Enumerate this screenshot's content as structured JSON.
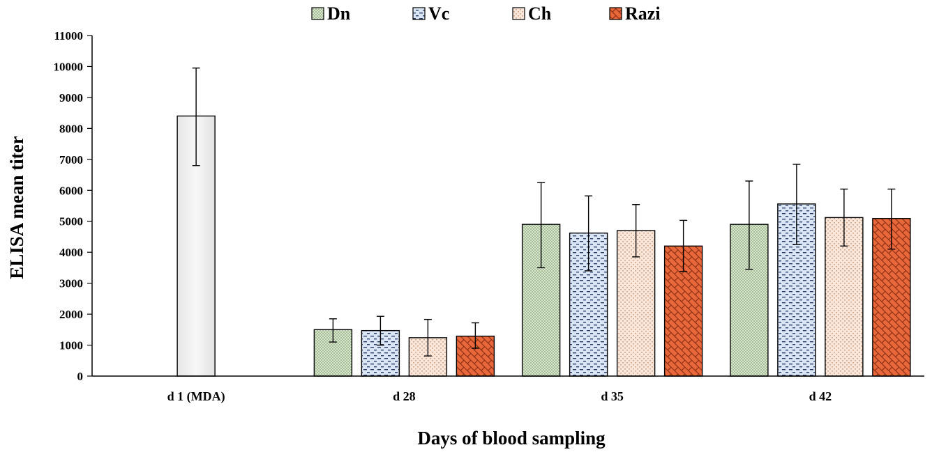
{
  "chart_data": {
    "type": "bar",
    "title": "",
    "xlabel": "Days of blood sampling",
    "ylabel": "ELISA mean titer",
    "ylim": [
      0,
      11000
    ],
    "yticks": [
      0,
      1000,
      2000,
      3000,
      4000,
      5000,
      6000,
      7000,
      8000,
      9000,
      10000,
      11000
    ],
    "grid": false,
    "legend_position": "top",
    "categories": [
      "d 1 (MDA)",
      "d 28",
      "d 35",
      "d 42"
    ],
    "baseline": {
      "category": "d 1 (MDA)",
      "value": 8400,
      "err_low": 6800,
      "err_high": 9950,
      "color": "#efefef"
    },
    "series": [
      {
        "name": "Dn",
        "color": "#d7e6cc",
        "pattern": "dots",
        "values": [
          null,
          1500,
          4900,
          4900
        ],
        "err_low": [
          null,
          1100,
          3500,
          3450
        ],
        "err_high": [
          null,
          1850,
          6250,
          6300
        ]
      },
      {
        "name": "Vc",
        "color": "#dae5f5",
        "pattern": "dashes",
        "values": [
          null,
          1470,
          4620,
          5560
        ],
        "err_low": [
          null,
          1000,
          3400,
          4250
        ],
        "err_high": [
          null,
          1930,
          5820,
          6840
        ]
      },
      {
        "name": "Ch",
        "color": "#fbe6da",
        "pattern": "vdots",
        "values": [
          null,
          1240,
          4700,
          5120
        ],
        "err_low": [
          null,
          650,
          3850,
          4200
        ],
        "err_high": [
          null,
          1830,
          5540,
          6040
        ]
      },
      {
        "name": "Razi",
        "color": "#e8683c",
        "pattern": "bricks",
        "values": [
          null,
          1290,
          4200,
          5090
        ],
        "err_low": [
          null,
          900,
          3380,
          4100
        ],
        "err_high": [
          null,
          1720,
          5030,
          6040
        ]
      }
    ]
  }
}
